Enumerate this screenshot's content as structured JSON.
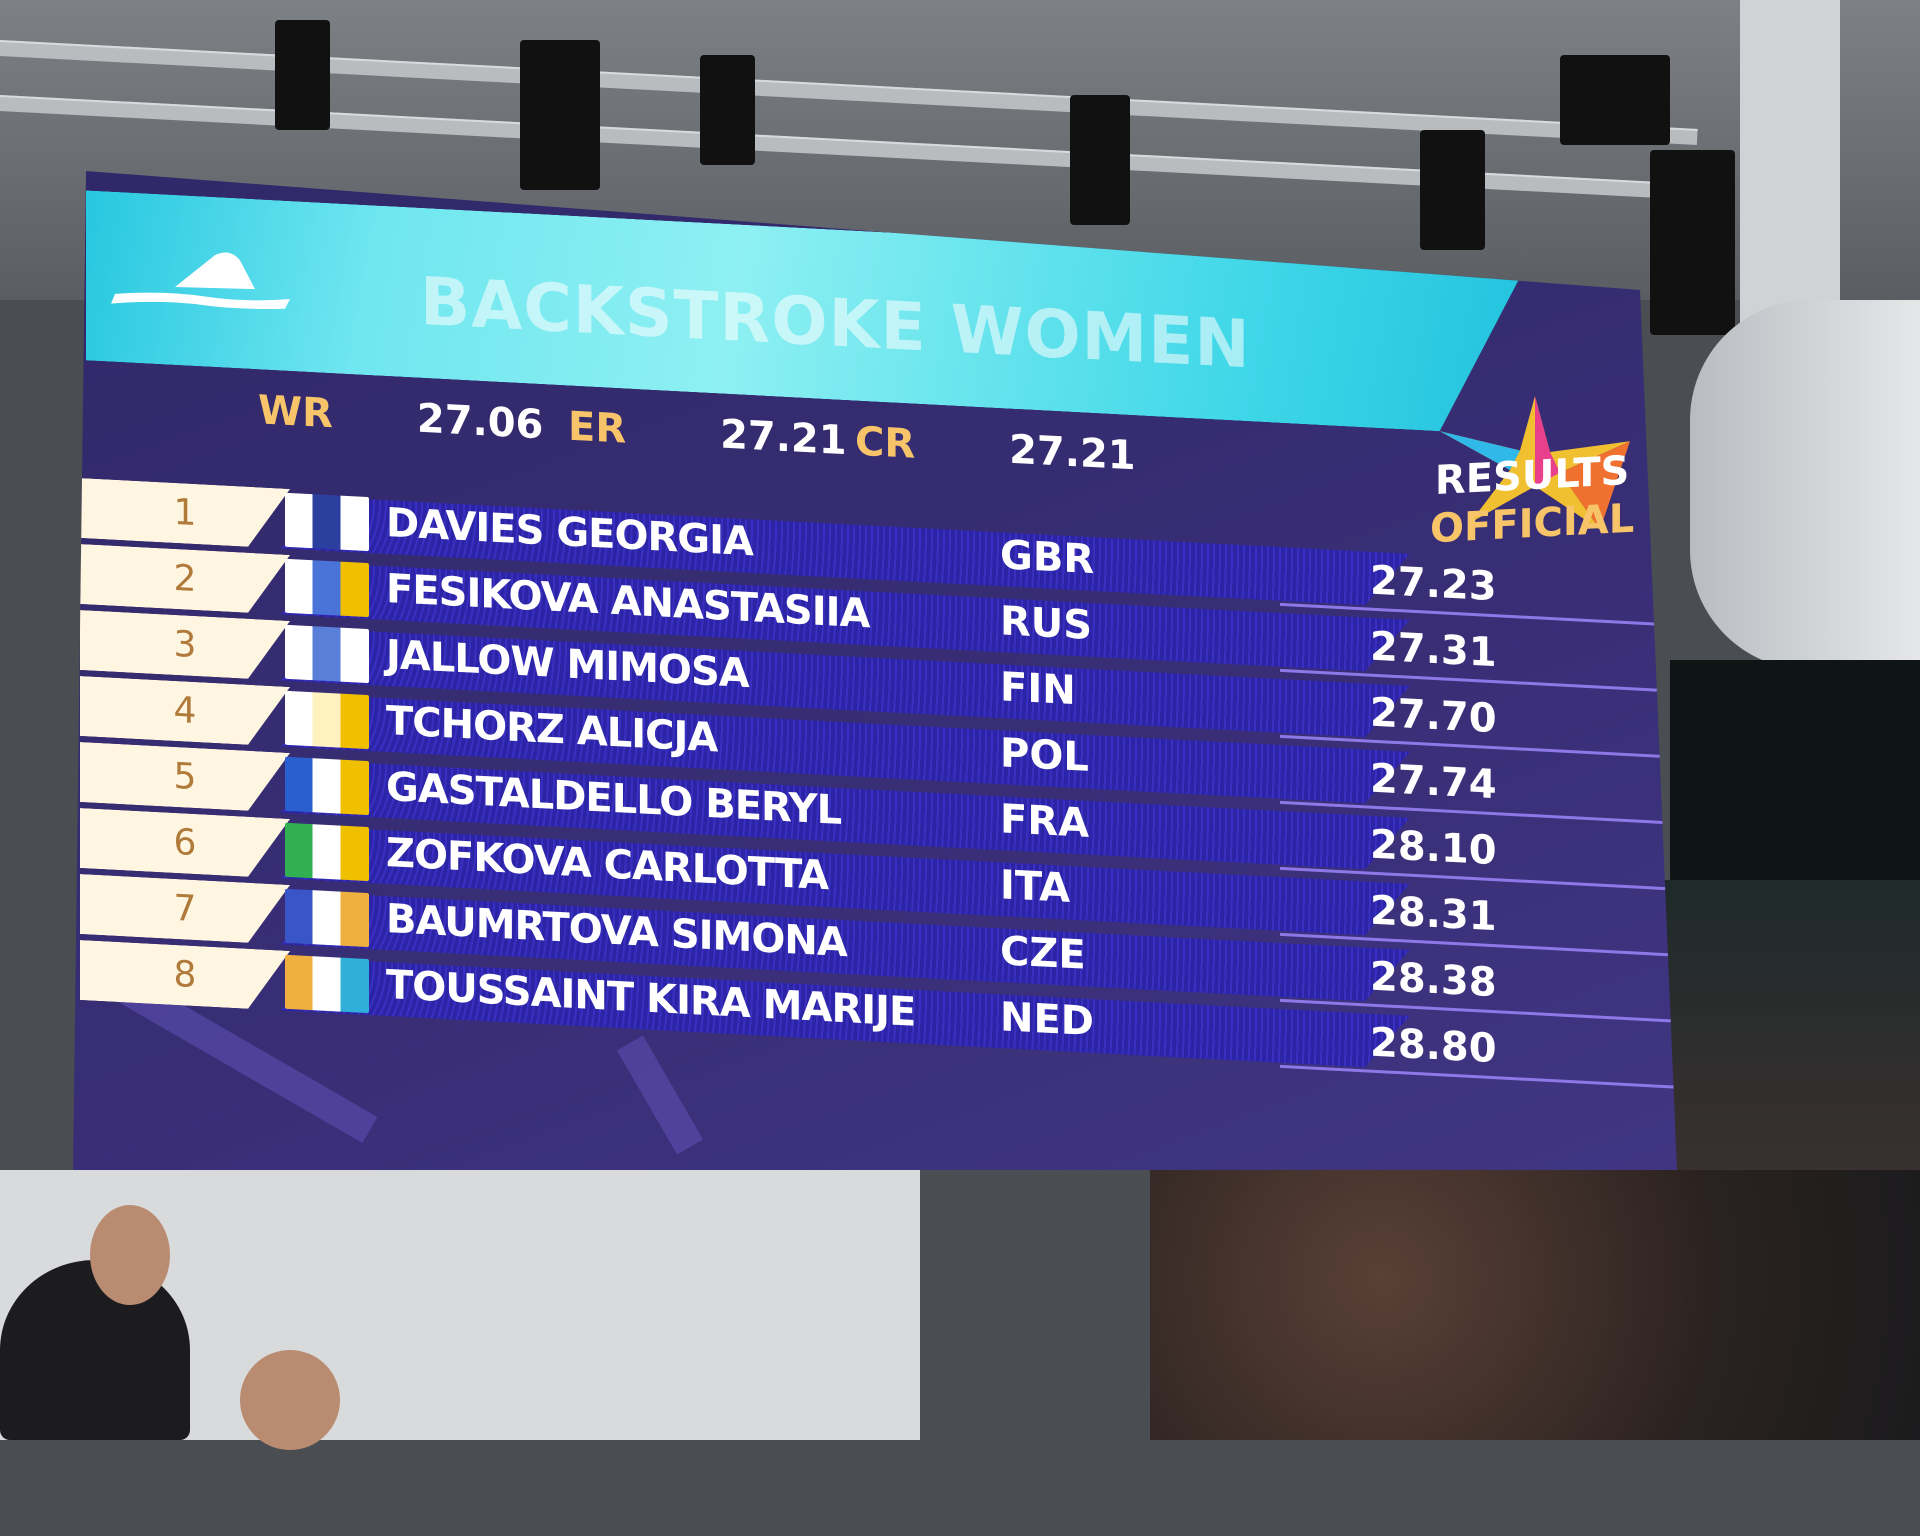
{
  "event": {
    "title": "BACKSTROKE WOMEN"
  },
  "records": [
    {
      "label": "WR",
      "value": "27.06"
    },
    {
      "label": "ER",
      "value": "27.21"
    },
    {
      "label": "CR",
      "value": "27.21"
    }
  ],
  "status": {
    "line1": "RESULTS",
    "line2": "OFFICIAL"
  },
  "colors": {
    "banner": "#6fe6f0",
    "board": "#3a2f78",
    "row_bar": "#2c24a6",
    "accent": "#f7c46a"
  },
  "results": [
    {
      "rank": "1",
      "name": "DAVIES GEORGIA",
      "nation": "GBR",
      "time": "27.23",
      "flag": [
        "#ffffff",
        "#2a3f9e",
        "#ffffff"
      ]
    },
    {
      "rank": "2",
      "name": "FESIKOVA ANASTASIIA",
      "nation": "RUS",
      "time": "27.31",
      "flag": [
        "#ffffff",
        "#4a73d8",
        "#f0c000"
      ]
    },
    {
      "rank": "3",
      "name": "JALLOW MIMOSA",
      "nation": "FIN",
      "time": "27.70",
      "flag": [
        "#ffffff",
        "#5a7fd8",
        "#ffffff"
      ]
    },
    {
      "rank": "4",
      "name": "TCHORZ ALICJA",
      "nation": "POL",
      "time": "27.74",
      "flag": [
        "#ffffff",
        "#fff2c0",
        "#f0c000"
      ]
    },
    {
      "rank": "5",
      "name": "GASTALDELLO BERYL",
      "nation": "FRA",
      "time": "28.10",
      "flag": [
        "#2a5fd0",
        "#ffffff",
        "#f0c000"
      ]
    },
    {
      "rank": "6",
      "name": "ZOFKOVA CARLOTTA",
      "nation": "ITA",
      "time": "28.31",
      "flag": [
        "#30b050",
        "#ffffff",
        "#f0c000"
      ]
    },
    {
      "rank": "7",
      "name": "BAUMRTOVA SIMONA",
      "nation": "CZE",
      "time": "28.38",
      "flag": [
        "#3a55c8",
        "#ffffff",
        "#f0b040"
      ]
    },
    {
      "rank": "8",
      "name": "TOUSSAINT KIRA MARIJE",
      "nation": "NED",
      "time": "28.80",
      "flag": [
        "#f0b040",
        "#ffffff",
        "#30b0d8"
      ]
    }
  ]
}
